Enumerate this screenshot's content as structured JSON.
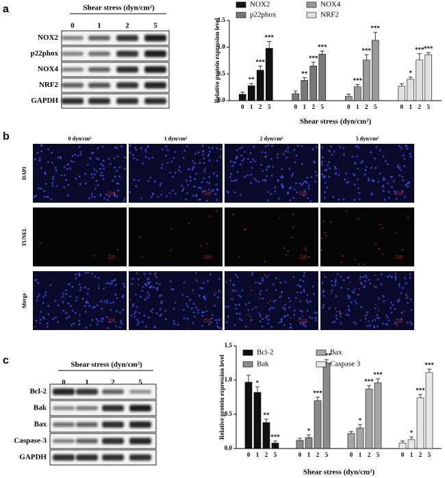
{
  "panel_labels": [
    "a",
    "b",
    "c"
  ],
  "blot_a": {
    "header": "Shear stress (dyn/cm²)",
    "lanes": [
      "0",
      "1",
      "2",
      "5"
    ],
    "rows": [
      "NOX2",
      "p22phox",
      "NOX4",
      "NRF2",
      "GAPDH"
    ]
  },
  "microscopy": {
    "columns": [
      "0 dyn/cm²",
      "1 dyn/cm²",
      "2 dyn/cm²",
      "5 dyn/cm²"
    ],
    "rows": [
      "DAPI",
      "TUNEL",
      "Merge"
    ],
    "scale_bar": "50 μm"
  },
  "blot_c": {
    "header": "Shear stress (dyn/cm²)",
    "lanes": [
      "0",
      "1",
      "2",
      "5"
    ],
    "rows": [
      "Bcl-2",
      "Bak",
      "Bax",
      "Caspase-3",
      "GAPDH"
    ]
  },
  "chart_data": [
    {
      "type": "bar",
      "y_label": "Relative protein expression level",
      "x_label": "Shear stress (dyn/cm²)",
      "categories": [
        "0",
        "1",
        "2",
        "5"
      ],
      "ylim": [
        0,
        1.5
      ],
      "yticks": [
        {
          "value": 0,
          "label": "0.0"
        },
        0.5,
        {
          "value": 1,
          "label": "1.0"
        },
        1.5
      ],
      "series": [
        {
          "name": "NOX2",
          "color": "#111111",
          "values": [
            0.12,
            0.28,
            0.57,
            0.98
          ],
          "errors": [
            0.04,
            0.04,
            0.08,
            0.13
          ],
          "annotations": [
            null,
            "**",
            "***",
            "***"
          ]
        },
        {
          "name": "p22phox",
          "color": "#777777",
          "values": [
            0.13,
            0.38,
            0.65,
            0.87
          ],
          "errors": [
            0.05,
            0.05,
            0.07,
            0.06
          ],
          "annotations": [
            null,
            "**",
            "***",
            "***"
          ]
        },
        {
          "name": "NOX4",
          "color": "#9a9a9a",
          "values": [
            0.08,
            0.26,
            0.76,
            1.13
          ],
          "errors": [
            0.04,
            0.04,
            0.1,
            0.15
          ],
          "annotations": [
            null,
            "***",
            "***",
            "***"
          ]
        },
        {
          "name": "NRF2",
          "color": "#e0e0e0",
          "values": [
            0.27,
            0.4,
            0.76,
            0.86
          ],
          "errors": [
            0.05,
            0.04,
            0.12,
            0.04
          ],
          "annotations": [
            null,
            "*",
            "***",
            "***"
          ]
        }
      ]
    },
    {
      "type": "bar",
      "y_label": "Relative protein expression level",
      "x_label": "Shear stress (dyn/cm²)",
      "categories": [
        "0",
        "1",
        "2",
        "5"
      ],
      "ylim": [
        0,
        1.5
      ],
      "yticks": [
        {
          "value": 0,
          "label": "0.0"
        },
        0.5,
        {
          "value": 1,
          "label": "1.0"
        },
        1.5
      ],
      "series": [
        {
          "name": "Bcl-2",
          "color": "#111111",
          "values": [
            0.97,
            0.82,
            0.38,
            0.08
          ],
          "errors": [
            0.1,
            0.08,
            0.05,
            0.03
          ],
          "annotations": [
            null,
            "*",
            "**",
            "***"
          ]
        },
        {
          "name": "Bak",
          "color": "#8a8a8a",
          "values": [
            0.12,
            0.16,
            0.7,
            1.25
          ],
          "errors": [
            0.03,
            0.04,
            0.05,
            0.05
          ],
          "annotations": [
            null,
            "*",
            "***",
            "***"
          ]
        },
        {
          "name": "Bax",
          "color": "#a5a5a5",
          "values": [
            0.22,
            0.3,
            0.87,
            0.96
          ],
          "errors": [
            0.03,
            0.05,
            0.05,
            0.06
          ],
          "annotations": [
            null,
            "*",
            "***",
            "***"
          ]
        },
        {
          "name": "Caspase 3",
          "color": "#e8e8e8",
          "values": [
            0.08,
            0.13,
            0.74,
            1.11
          ],
          "errors": [
            0.03,
            0.04,
            0.05,
            0.05
          ],
          "annotations": [
            null,
            "*",
            "***",
            "***"
          ]
        }
      ]
    }
  ]
}
